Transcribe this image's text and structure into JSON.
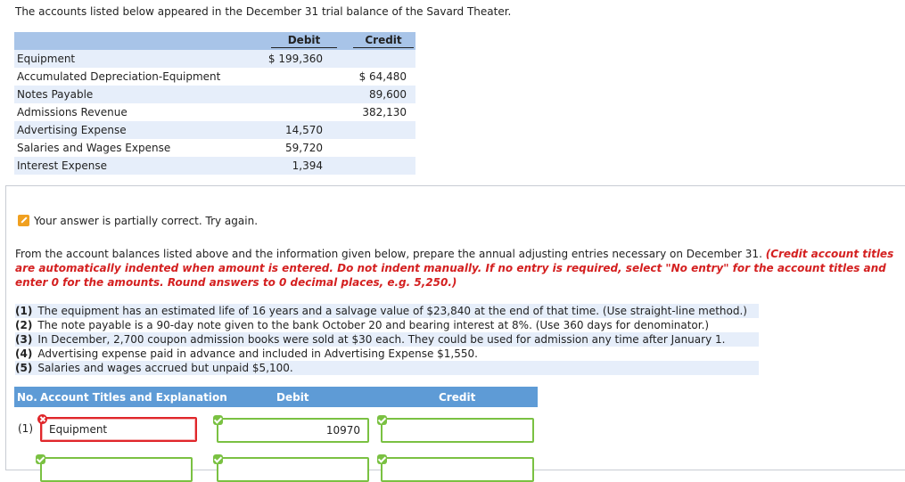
{
  "intro": "The accounts listed below appeared in the December 31 trial balance of the Savard Theater.",
  "trial_balance": {
    "headers": {
      "debit": "Debit",
      "credit": "Credit"
    },
    "rows": [
      {
        "account": "Equipment",
        "debit": "$ 199,360",
        "credit": ""
      },
      {
        "account": "Accumulated Depreciation-Equipment",
        "debit": "",
        "credit": "$ 64,480"
      },
      {
        "account": "Notes Payable",
        "debit": "",
        "credit": "89,600"
      },
      {
        "account": "Admissions Revenue",
        "debit": "",
        "credit": "382,130"
      },
      {
        "account": "Advertising Expense",
        "debit": "14,570",
        "credit": ""
      },
      {
        "account": "Salaries and Wages Expense",
        "debit": "59,720",
        "credit": ""
      },
      {
        "account": "Interest Expense",
        "debit": "1,394",
        "credit": ""
      }
    ]
  },
  "status": {
    "icon": "pencil-icon",
    "text": "Your answer is partially correct.  Try again."
  },
  "instructions": {
    "plain": "From the account balances listed above and the information given below, prepare the annual adjusting entries necessary on December 31. ",
    "emphasis": "(Credit account titles are automatically indented when amount is entered. Do not indent manually. If no entry is required, select \"No entry\" for the account titles and enter 0 for the amounts. Round answers to 0 decimal places, e.g. 5,250.)"
  },
  "info_items": [
    {
      "num": "(1)",
      "text": "The equipment has an estimated life of 16 years and a salvage value of $23,840 at the end of that time. (Use straight-line method.)"
    },
    {
      "num": "(2)",
      "text": "The note payable is a 90-day note given to the bank October 20 and bearing interest at 8%. (Use 360 days for denominator.)"
    },
    {
      "num": "(3)",
      "text": "In December, 2,700 coupon admission books were sold at $30 each. They could be used for admission any time after January 1."
    },
    {
      "num": "(4)",
      "text": "Advertising expense paid in advance and included in Advertising Expense $1,550."
    },
    {
      "num": "(5)",
      "text": "Salaries and wages accrued but unpaid $5,100."
    }
  ],
  "journal": {
    "headers": {
      "no": "No.",
      "account": "Account Titles and Explanation",
      "debit": "Debit",
      "credit": "Credit"
    },
    "entries": [
      {
        "no": "(1)",
        "account": "Equipment",
        "debit": "10970",
        "credit": ""
      }
    ]
  },
  "colors": {
    "header_blue": "#5e9bd6",
    "table_header": "#a8c4e8",
    "row_alt": "#e6eefa",
    "ok_green": "#7ac142",
    "error_red": "#e0262a",
    "emphasis_red": "#d42020"
  }
}
